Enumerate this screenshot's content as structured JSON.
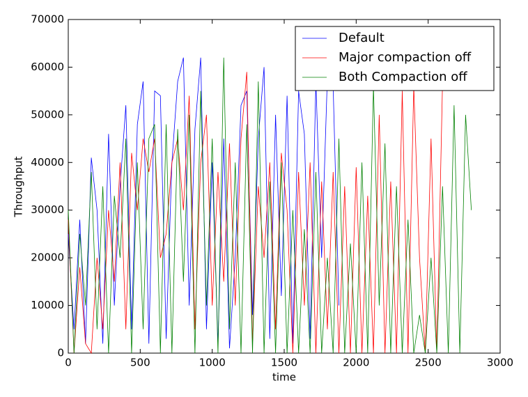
{
  "chart_data": {
    "type": "line",
    "xlabel": "time",
    "ylabel": "Throughput",
    "xlim": [
      0,
      3000
    ],
    "xticks": [
      0,
      500,
      1000,
      1500,
      2000,
      2500,
      3000
    ],
    "ylim": [
      0,
      70000
    ],
    "yticks": [
      0,
      10000,
      20000,
      30000,
      40000,
      50000,
      60000,
      70000
    ],
    "grid": false,
    "legend": "upper right",
    "x": [
      0,
      40,
      80,
      120,
      160,
      200,
      240,
      280,
      320,
      360,
      400,
      440,
      480,
      520,
      560,
      600,
      640,
      680,
      720,
      760,
      800,
      840,
      880,
      920,
      960,
      1000,
      1040,
      1080,
      1120,
      1160,
      1200,
      1240,
      1280,
      1320,
      1360,
      1400,
      1440,
      1480,
      1520,
      1560,
      1600,
      1640,
      1680,
      1720,
      1760,
      1800,
      1840,
      1880,
      1920,
      1960,
      2000,
      2040,
      2080,
      2120,
      2160,
      2200,
      2240,
      2280,
      2320,
      2360,
      2400,
      2440,
      2480,
      2520,
      2560,
      2600,
      2640,
      2680,
      2720,
      2760,
      2800
    ],
    "series": [
      {
        "name": "Default",
        "color": "#0000ff",
        "values": [
          25000,
          5000,
          28000,
          2000,
          41000,
          30000,
          2000,
          46000,
          10000,
          35000,
          52000,
          5000,
          48000,
          57000,
          2000,
          55000,
          54000,
          3000,
          40000,
          57000,
          62000,
          10000,
          47000,
          62000,
          5000,
          40000,
          2000,
          45000,
          1000,
          20000,
          52000,
          55000,
          8000,
          45000,
          60000,
          3000,
          50000,
          12000,
          54000,
          2000,
          55000,
          46000,
          3000,
          57000,
          20000,
          58000,
          56000,
          10000,
          null,
          null,
          null,
          null,
          null,
          null,
          null,
          null,
          null,
          null,
          null,
          null,
          null,
          null,
          null,
          null,
          null,
          null,
          null,
          null,
          null,
          null,
          null
        ]
      },
      {
        "name": "Major compaction off",
        "color": "#ff0000",
        "values": [
          28000,
          0,
          18000,
          2000,
          0,
          20000,
          5000,
          30000,
          15000,
          40000,
          5000,
          42000,
          30000,
          45000,
          38000,
          45000,
          20000,
          25000,
          40000,
          45000,
          30000,
          54000,
          5000,
          40000,
          50000,
          10000,
          38000,
          15000,
          44000,
          10000,
          45000,
          59000,
          2000,
          35000,
          20000,
          40000,
          5000,
          42000,
          30000,
          0,
          38000,
          10000,
          40000,
          0,
          36000,
          5000,
          38000,
          0,
          35000,
          0,
          39000,
          0,
          33000,
          0,
          50000,
          0,
          36000,
          0,
          55000,
          0,
          56000,
          20000,
          0,
          45000,
          0,
          57000,
          null,
          null,
          null,
          null,
          null
        ]
      },
      {
        "name": "Both Compaction off",
        "color": "#008000",
        "values": [
          30000,
          0,
          25000,
          10000,
          38000,
          5000,
          35000,
          0,
          33000,
          20000,
          45000,
          0,
          40000,
          5000,
          45000,
          48000,
          0,
          48000,
          0,
          47000,
          15000,
          50000,
          0,
          55000,
          10000,
          45000,
          0,
          62000,
          5000,
          40000,
          0,
          48000,
          0,
          57000,
          0,
          36000,
          0,
          40000,
          0,
          30000,
          0,
          26000,
          0,
          38000,
          0,
          20000,
          0,
          45000,
          0,
          23000,
          0,
          40000,
          0,
          56000,
          10000,
          44000,
          0,
          35000,
          0,
          28000,
          0,
          8000,
          0,
          20000,
          0,
          35000,
          0,
          52000,
          0,
          50000,
          30000
        ]
      }
    ]
  }
}
